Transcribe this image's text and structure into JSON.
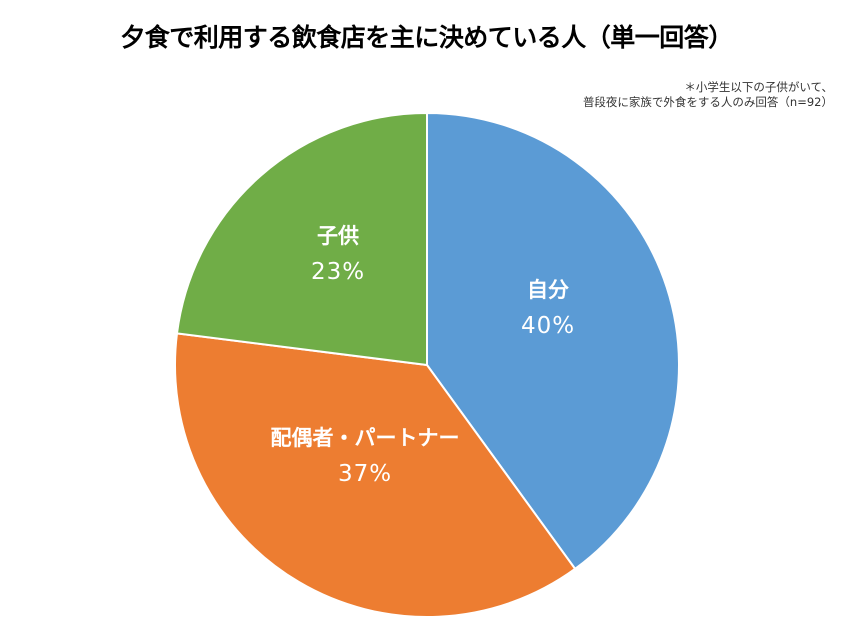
{
  "title": "夕食で利用する飲食店を主に決めている人（単一回答）",
  "note": {
    "line1": "＊小学生以下の子供がいて、",
    "line2": "普段夜に家族で外食をする人のみ回答（n=92）"
  },
  "labels": {
    "self": {
      "name": "自分",
      "pct": "40%"
    },
    "spouse": {
      "name": "配偶者・パートナー",
      "pct": "37%"
    },
    "child": {
      "name": "子供",
      "pct": "23%"
    }
  },
  "chart_data": {
    "type": "pie",
    "title": "夕食で利用する飲食店を主に決めている人（単一回答）",
    "subtitle": "＊小学生以下の子供がいて、普段夜に家族で外食をする人のみ回答（n=92）",
    "categories": [
      "自分",
      "配偶者・パートナー",
      "子供"
    ],
    "values": [
      40,
      37,
      23
    ],
    "unit": "%",
    "colors": [
      "#5B9BD5",
      "#ED7D31",
      "#70AD47"
    ],
    "start_angle": "12 o'clock, clockwise",
    "legend": "none (data labels inside slices)"
  }
}
